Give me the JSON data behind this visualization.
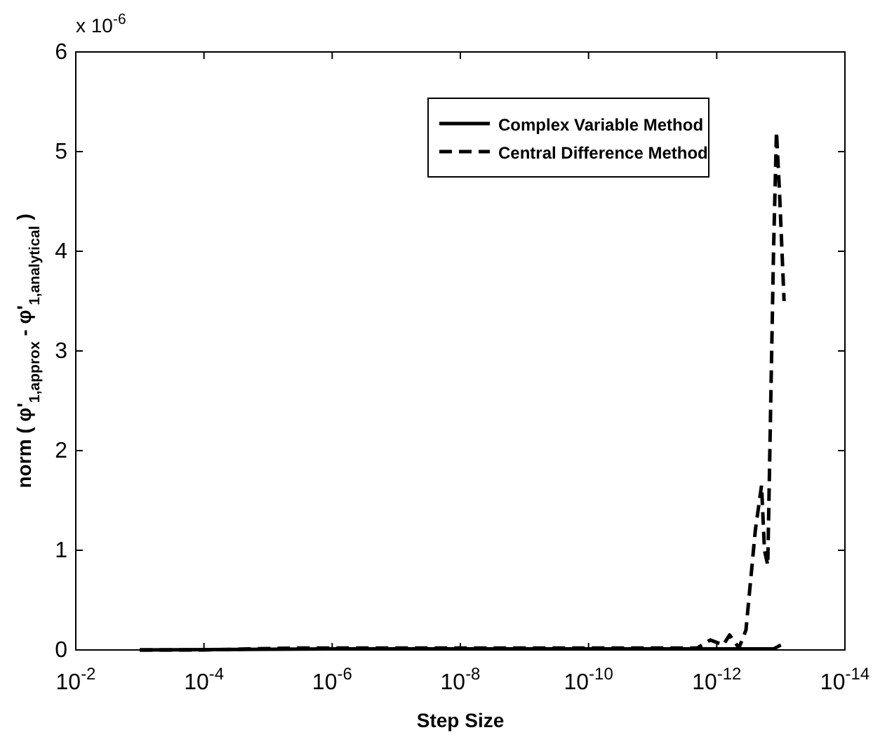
{
  "chart_data": {
    "type": "line",
    "xlabel": "Step Size",
    "ylabel": "norm ( φ'$_{1,approx}$ - φ'$_{1,analytical}$ )",
    "log": "x",
    "xlim": [
      0.01,
      1e-14
    ],
    "xticks": [
      {
        "value": 0.01,
        "label": "10$^{-2}$"
      },
      {
        "value": 0.0001,
        "label": "10$^{-4}$"
      },
      {
        "value": 1e-06,
        "label": "10$^{-6}$"
      },
      {
        "value": 1e-08,
        "label": "10$^{-8}$"
      },
      {
        "value": 1e-10,
        "label": "10$^{-10}$"
      },
      {
        "value": 1e-12,
        "label": "10$^{-12}$"
      },
      {
        "value": 1e-14,
        "label": "10$^{-14}$"
      }
    ],
    "ylim": [
      0,
      6
    ],
    "yticks": [
      0,
      1,
      2,
      3,
      4,
      5,
      6
    ],
    "annotations": [
      "x 10$^{-6}$"
    ],
    "grid": false,
    "legend": "top right",
    "series": [
      {
        "name": "Complex Variable Method",
        "color": "#000000",
        "line_style": "solid",
        "x": [
          0.001,
          1e-06,
          1e-12,
          1.3e-13,
          1e-13
        ],
        "values": [
          0,
          0.01,
          0.01,
          0.01,
          0.05
        ]
      },
      {
        "name": "Central Difference Method",
        "color": "#000000",
        "line_style": "dashed",
        "x": [
          0.001,
          0.0001,
          2e-05,
          3.16e-06,
          1e-06,
          1e-08,
          1e-10,
          2e-12,
          1.26e-12,
          7.9e-13,
          6.3e-13,
          4.5e-13,
          3.5e-13,
          2.5e-13,
          2e-13,
          1.8e-13,
          1.6e-13,
          1.3e-13,
          1.17e-13,
          1.05e-13,
          8.9e-14
        ],
        "values": [
          0,
          0,
          0.01,
          0.02,
          0.02,
          0.02,
          0.02,
          0.02,
          0.1,
          0.05,
          0.15,
          0.02,
          0.2,
          1.2,
          1.65,
          1.0,
          0.85,
          4.0,
          5.2,
          4.6,
          3.5
        ]
      }
    ]
  }
}
